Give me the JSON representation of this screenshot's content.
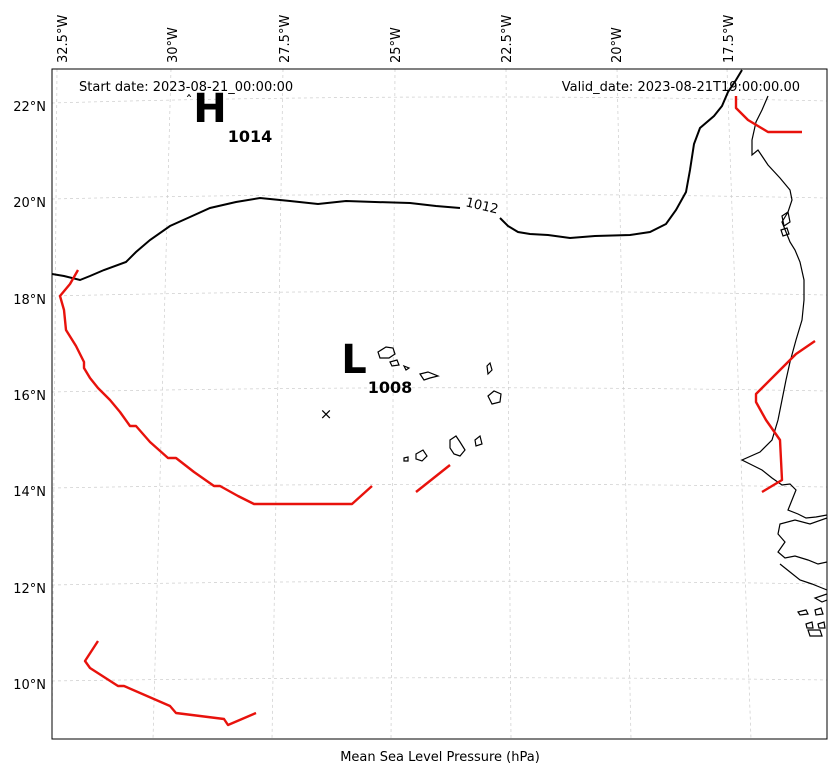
{
  "header": {
    "start_date": "Start date: 2023-08-21_00:00:00",
    "valid_date": "Valid_date: 2023-08-21T19:00:00.00"
  },
  "xlabel": "Mean Sea Level Pressure (hPa)",
  "lon_labels": [
    "32.5°W",
    "30°W",
    "27.5°W",
    "25°W",
    "22.5°W",
    "20°W",
    "17.5°W"
  ],
  "lat_labels": [
    "22°N",
    "20°N",
    "18°N",
    "16°N",
    "14°N",
    "12°N",
    "10°N"
  ],
  "pressure_centers": [
    {
      "type_label": "H",
      "value": "1014"
    },
    {
      "type_label": "L",
      "value": "1008"
    }
  ],
  "contour_label": "1012",
  "storm_marker": "×",
  "colors": {
    "contour": "#000000",
    "boundary": "#e8120c",
    "coast": "#000000",
    "grid": "#cccccc"
  }
}
